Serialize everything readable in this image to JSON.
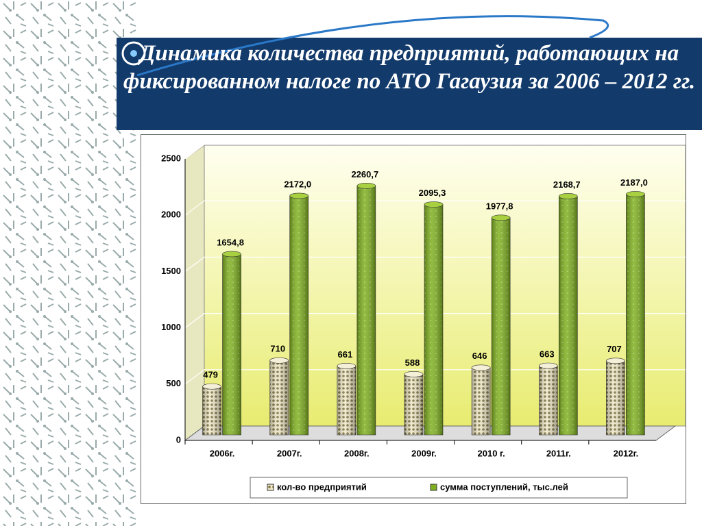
{
  "chart_data": {
    "type": "bar",
    "title": "Динамика количества предприятий, работающих на фиксированном налоге по АТО Гагаузия за 2006 – 2012 гг.",
    "categories": [
      "2006г.",
      "2007г.",
      "2008г.",
      "2009г.",
      "2010 г.",
      "2011г.",
      "2012г."
    ],
    "series": [
      {
        "name": "кол-во предприятий",
        "color": "#c8c090",
        "values": [
          479,
          710,
          661,
          588,
          646,
          663,
          707
        ]
      },
      {
        "name": "сумма поступлений, тыс.лей",
        "color": "#7fb020",
        "values": [
          1654.8,
          2172.0,
          2260.7,
          2095.3,
          1977.8,
          2168.7,
          2187.0
        ],
        "value_labels": [
          "1654,8",
          "2172,0",
          "2260,7",
          "2095,3",
          "1977,8",
          "2168,7",
          "2187,0"
        ]
      }
    ],
    "ylim": [
      0,
      2500
    ],
    "yticks": [
      0,
      500,
      1000,
      1500,
      2000,
      2500
    ],
    "grid": true,
    "legend": "bottom"
  }
}
